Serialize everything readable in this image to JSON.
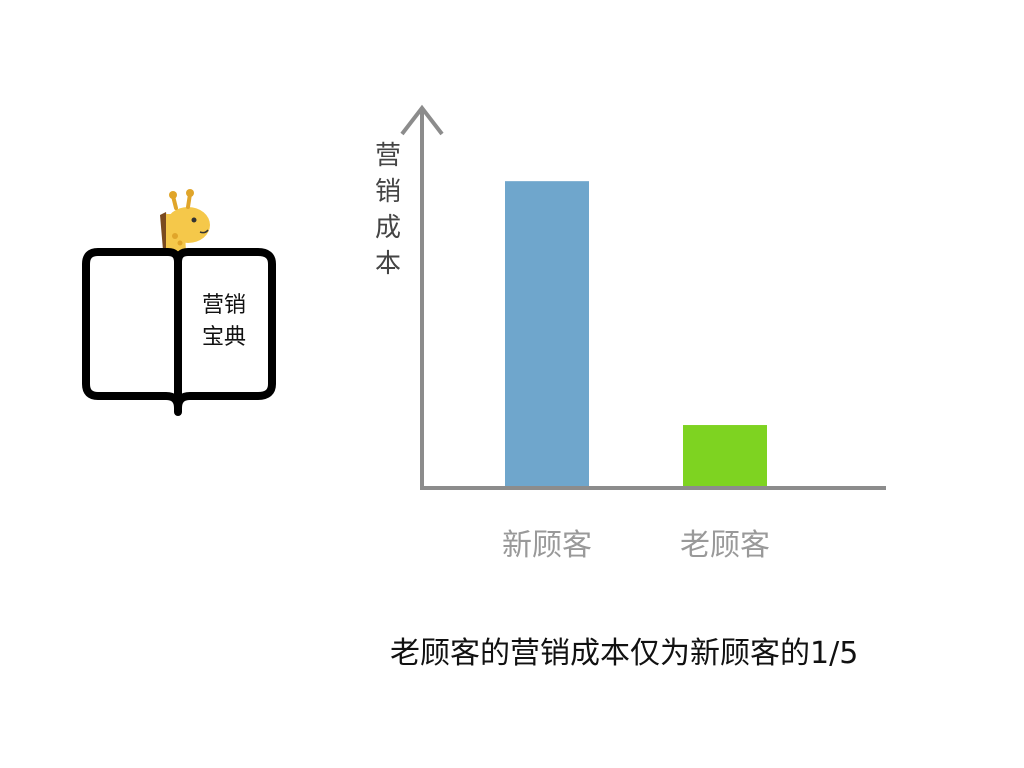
{
  "logo": {
    "line1": "营销",
    "line2": "宝典"
  },
  "chart_data": {
    "type": "bar",
    "categories": [
      "新顾客",
      "老顾客"
    ],
    "values": [
      5,
      1
    ],
    "ylabel": "营销成本",
    "ylabel_chars": [
      "营",
      "销",
      "成",
      "本"
    ],
    "xlabel": "",
    "ylim": [
      0,
      6.2
    ],
    "colors": [
      "#6fa6cc",
      "#7ed321"
    ],
    "grid": false,
    "axis_color": "#8c8c8c"
  },
  "caption": "老顾客的营销成本仅为新顾客的1/5"
}
